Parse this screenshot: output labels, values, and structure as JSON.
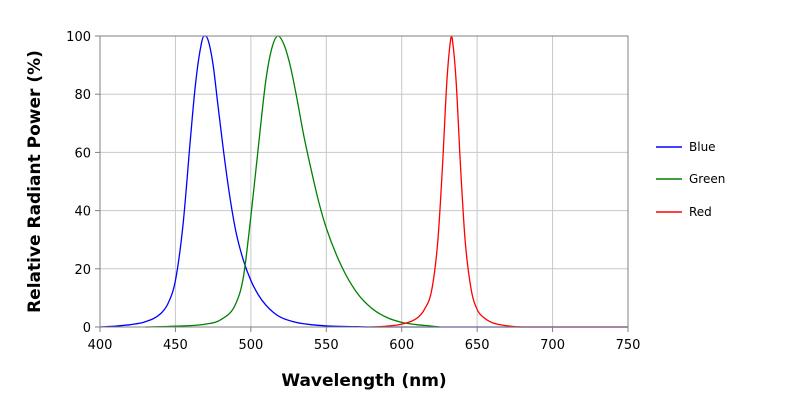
{
  "chart_data": {
    "type": "line",
    "xlabel": "Wavelength (nm)",
    "ylabel": "Relative Radiant Power (%)",
    "xlim": [
      400,
      750
    ],
    "ylim": [
      0,
      100
    ],
    "x_ticks": [
      400,
      450,
      500,
      550,
      600,
      650,
      700,
      750
    ],
    "y_ticks": [
      0,
      20,
      40,
      60,
      80,
      100
    ],
    "grid": true,
    "legend_position": "right",
    "series": [
      {
        "name": "Blue",
        "color": "#0000ff",
        "x": [
          400,
          410,
          420,
          430,
          440,
          445,
          450,
          455,
          460,
          463,
          466,
          469,
          470,
          472,
          475,
          478,
          482,
          486,
          490,
          495,
          500,
          505,
          510,
          515,
          520,
          530,
          540,
          550,
          560,
          570,
          580,
          600,
          650,
          700,
          750
        ],
        "y": [
          0,
          0.3,
          0.8,
          1.8,
          4.5,
          8,
          16,
          35,
          65,
          82,
          94,
          100,
          100,
          98,
          90,
          77,
          60,
          45,
          33,
          23,
          16,
          11,
          7.5,
          5,
          3.3,
          1.6,
          0.8,
          0.4,
          0.2,
          0.1,
          0,
          0,
          0,
          0,
          0
        ]
      },
      {
        "name": "Green",
        "color": "#008000",
        "x": [
          430,
          450,
          470,
          480,
          490,
          495,
          500,
          505,
          510,
          514,
          518,
          522,
          526,
          530,
          535,
          540,
          545,
          550,
          560,
          570,
          580,
          590,
          600,
          610,
          620,
          625
        ],
        "y": [
          0,
          0.3,
          1,
          2.5,
          8,
          17,
          38,
          62,
          85,
          96,
          100,
          97,
          90,
          80,
          66,
          54,
          43,
          34,
          21,
          12,
          6.5,
          3.3,
          1.6,
          0.8,
          0.3,
          0
        ]
      },
      {
        "name": "Red",
        "color": "#ff0000",
        "x": [
          580,
          590,
          600,
          610,
          615,
          620,
          624,
          627,
          630,
          632,
          633,
          634,
          636,
          639,
          642,
          646,
          650,
          655,
          660,
          665,
          670,
          680,
          700,
          750
        ],
        "y": [
          0,
          0.3,
          1,
          3,
          6,
          13,
          30,
          55,
          85,
          97,
          100,
          97,
          85,
          55,
          30,
          13,
          6,
          3,
          1.5,
          0.8,
          0.4,
          0,
          0,
          0
        ]
      }
    ]
  }
}
